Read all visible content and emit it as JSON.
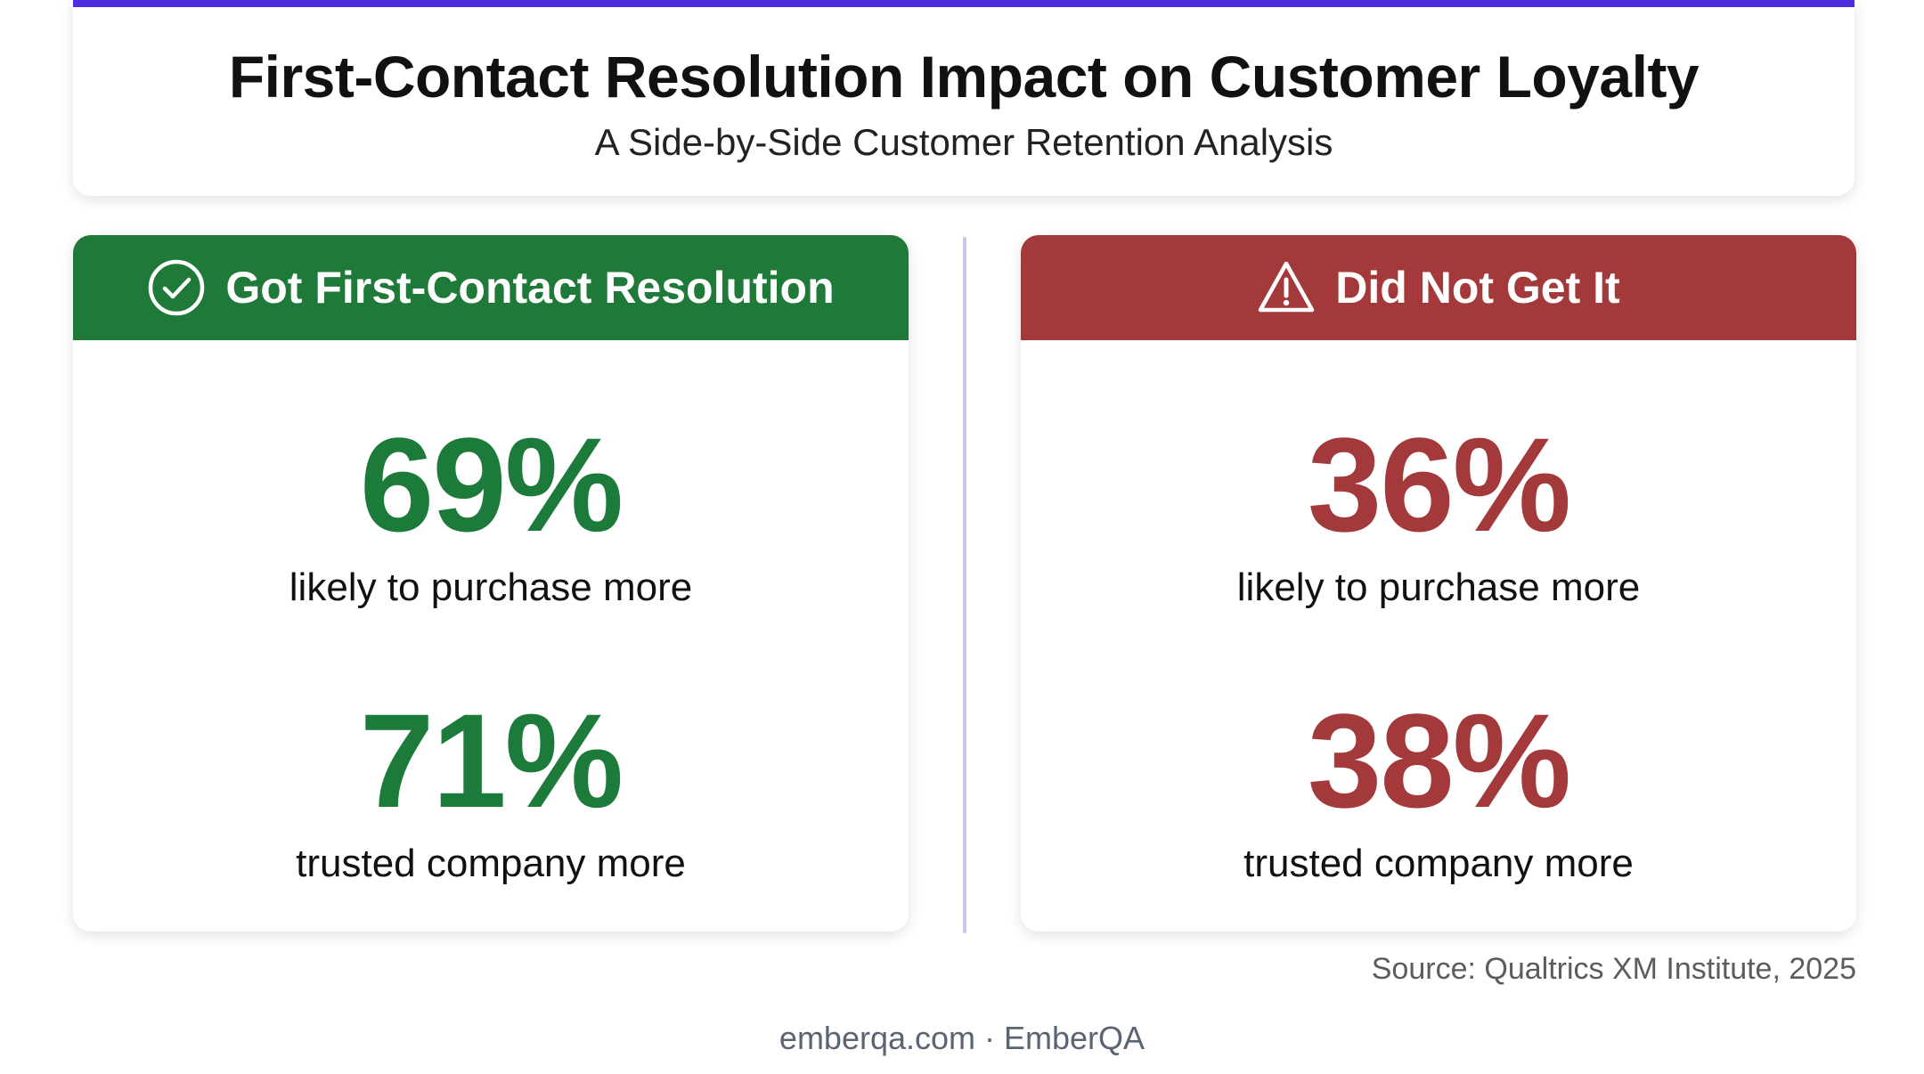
{
  "header": {
    "title": "First-Contact Resolution Impact on Customer Loyalty",
    "subtitle": "A Side-by-Side Customer Retention Analysis"
  },
  "colors": {
    "accent": "#4f2cdd",
    "positive": "#1f7a3a",
    "negative": "#a3393a",
    "divider": "#c9c6f2"
  },
  "panels": {
    "left": {
      "icon": "check-circle-icon",
      "title": "Got First-Contact Resolution",
      "stats": [
        {
          "value": "69%",
          "label": "likely to purchase more"
        },
        {
          "value": "71%",
          "label": "trusted company more"
        }
      ]
    },
    "right": {
      "icon": "warning-triangle-icon",
      "title": "Did Not Get It",
      "stats": [
        {
          "value": "36%",
          "label": "likely to purchase more"
        },
        {
          "value": "38%",
          "label": "trusted company more"
        }
      ]
    }
  },
  "source": "Source: Qualtrics XM Institute, 2025",
  "footer": "emberqa.com · EmberQA"
}
